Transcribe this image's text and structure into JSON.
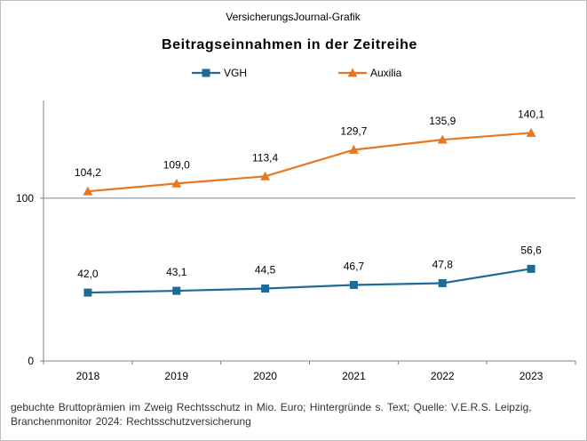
{
  "chart_data": {
    "type": "line",
    "supertitle": "VersicherungsJournal-Grafik",
    "title": "Beitragseinnahmen  in der Zeitreihe",
    "categories": [
      "2018",
      "2019",
      "2020",
      "2021",
      "2022",
      "2023"
    ],
    "series": [
      {
        "name": "VGH",
        "color": "#1f6b96",
        "marker": "square",
        "values": [
          42.0,
          43.1,
          44.5,
          46.7,
          47.8,
          56.6
        ],
        "labels": [
          "42,0",
          "43,1",
          "44,5",
          "46,7",
          "47,8",
          "56,6"
        ]
      },
      {
        "name": "Auxilia",
        "color": "#e87722",
        "marker": "triangle",
        "values": [
          104.2,
          109.0,
          113.4,
          129.7,
          135.9,
          140.1
        ],
        "labels": [
          "104,2",
          "109,0",
          "113,4",
          "129,7",
          "135,9",
          "140,1"
        ]
      }
    ],
    "ylim": [
      0,
      160
    ],
    "yticks": [
      0,
      100
    ],
    "ytick_labels": [
      "0",
      "100"
    ],
    "gridlines": [
      100
    ],
    "legend_position": "top-center",
    "xlabel": "",
    "ylabel": ""
  },
  "footnote": "gebuchte Bruttoprämien im Zweig Rechtsschutz in Mio. Euro; Hintergründe  s. Text; Quelle: V.E.R.S. Leipzig, Branchenmonitor 2024: Rechtsschutzversicherung"
}
